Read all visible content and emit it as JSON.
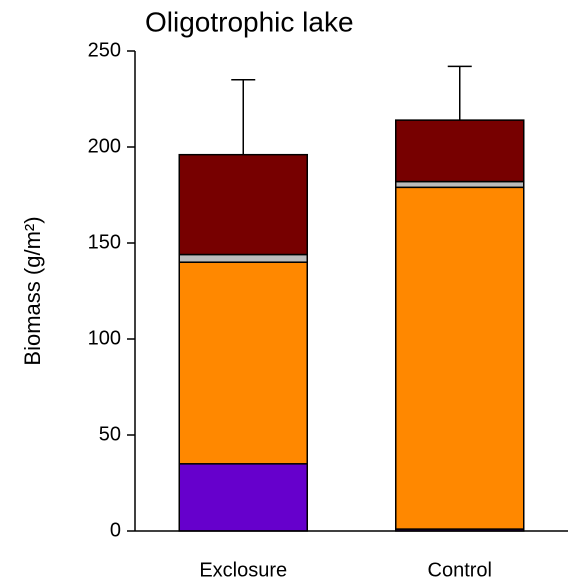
{
  "chart_data": {
    "type": "stacked-bar",
    "title": "Oligotrophic lake",
    "y_label": "Biomass (g/m²)",
    "categories": [
      "Exclosure",
      "Control"
    ],
    "series": [
      {
        "color": "#6600cc",
        "values": [
          35,
          1
        ]
      },
      {
        "color": "#ff8800",
        "values": [
          105,
          178
        ]
      },
      {
        "color": "#bbbbbb",
        "values": [
          4,
          3
        ]
      },
      {
        "color": "#770000",
        "values": [
          52,
          32
        ]
      }
    ],
    "errors": [
      39,
      28
    ],
    "ylim": [
      0,
      250
    ],
    "yticks": [
      0,
      50,
      100,
      150,
      200,
      250
    ]
  }
}
